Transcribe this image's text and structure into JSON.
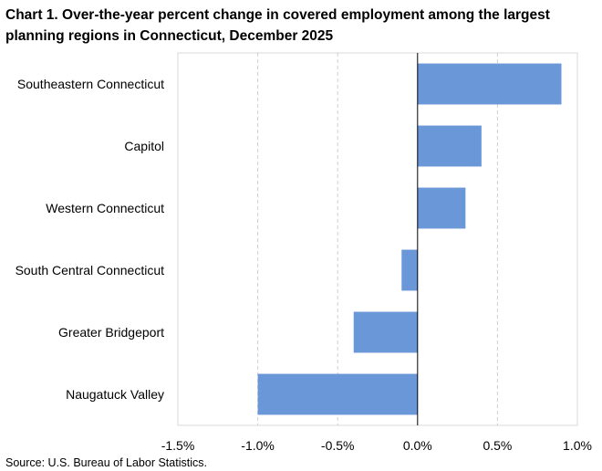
{
  "title": "Chart 1. Over-the-year percent change in covered employment among the largest planning regions in Connecticut, December 2025",
  "source": "Source: U.S. Bureau of Labor Statistics.",
  "colors": {
    "bar": "#6a97d8",
    "grid": "#cfcfcf",
    "axis": "#000000"
  },
  "chart_data": {
    "type": "bar",
    "orientation": "horizontal",
    "title": "Chart 1. Over-the-year percent change in covered employment among the largest planning regions in Connecticut, December 2025",
    "xlabel": "",
    "ylabel": "",
    "categories": [
      "Southeastern Connecticut",
      "Capitol",
      "Western Connecticut",
      "South Central Connecticut",
      "Greater Bridgeport",
      "Naugatuck Valley"
    ],
    "values": [
      0.9,
      0.4,
      0.3,
      -0.1,
      -0.4,
      -1.0
    ],
    "xlim": [
      -1.5,
      1.0
    ],
    "xticks": [
      -1.5,
      -1.0,
      -0.5,
      0.0,
      0.5,
      1.0
    ],
    "xtick_labels": [
      "-1.5%",
      "-1.0%",
      "-0.5%",
      "0.0%",
      "0.5%",
      "1.0%"
    ],
    "grid": "vertical dashed",
    "legend": "none"
  }
}
